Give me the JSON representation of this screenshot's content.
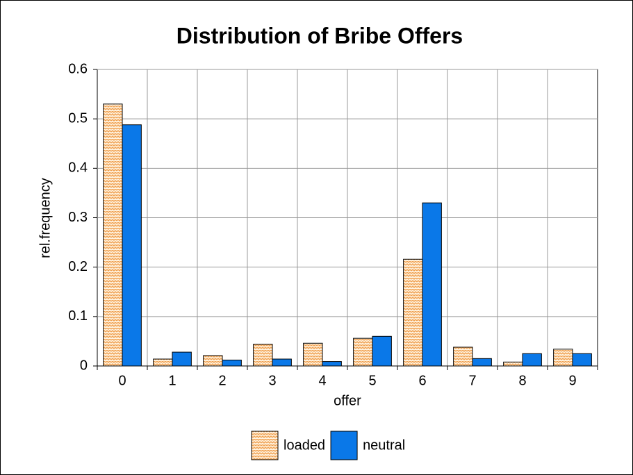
{
  "chart_data": {
    "type": "bar",
    "title": "Distribution of Bribe Offers",
    "x_label": "offer",
    "y_label": "rel.frequency",
    "categories": [
      "0",
      "1",
      "2",
      "3",
      "4",
      "5",
      "6",
      "7",
      "8",
      "9"
    ],
    "series": [
      {
        "name": "loaded",
        "color": "#f0a050",
        "pattern": "zigzag",
        "values": [
          0.53,
          0.014,
          0.021,
          0.044,
          0.046,
          0.056,
          0.216,
          0.038,
          0.008,
          0.034
        ]
      },
      {
        "name": "neutral",
        "color": "#0a78e8",
        "values": [
          0.488,
          0.028,
          0.012,
          0.014,
          0.009,
          0.06,
          0.33,
          0.015,
          0.025,
          0.025
        ]
      }
    ],
    "ylim": [
      0,
      0.6
    ],
    "yticks": [
      0,
      0.1,
      0.2,
      0.3,
      0.4,
      0.5,
      0.6
    ],
    "grid": true,
    "legend": "bottom"
  }
}
